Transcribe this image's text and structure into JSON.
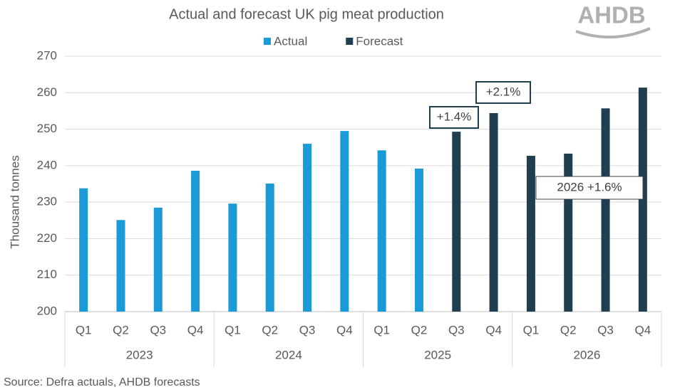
{
  "chart_data": {
    "type": "bar",
    "title": "Actual and forecast UK pig meat production",
    "logo": "AHDB",
    "y_label": "Thousand tonnes",
    "source": "Source: Defra actuals, AHDB forecasts",
    "categories": [
      "Q1",
      "Q2",
      "Q3",
      "Q4",
      "Q1",
      "Q2",
      "Q3",
      "Q4",
      "Q1",
      "Q2",
      "Q3",
      "Q4",
      "Q1",
      "Q2",
      "Q3",
      "Q4"
    ],
    "groups": [
      "2023",
      "2024",
      "2025",
      "2026"
    ],
    "series": [
      {
        "name": "Actual",
        "color": "#1a9ad6",
        "values": [
          233.8,
          225.1,
          228.5,
          238.6,
          229.6,
          235.1,
          246.0,
          249.5,
          244.2,
          239.2,
          null,
          null,
          null,
          null,
          null,
          null
        ]
      },
      {
        "name": "Forecast",
        "color": "#1f3e4f",
        "values": [
          null,
          null,
          null,
          null,
          null,
          null,
          null,
          null,
          null,
          null,
          249.3,
          254.4,
          242.7,
          243.3,
          255.7,
          261.4
        ]
      }
    ],
    "annotations": [
      "+1.4%",
      "+2.1%",
      "2026 +1.6%"
    ],
    "ylim": [
      200,
      270
    ],
    "yticks": [
      200,
      210,
      220,
      230,
      240,
      250,
      260,
      270
    ],
    "grid": true
  }
}
